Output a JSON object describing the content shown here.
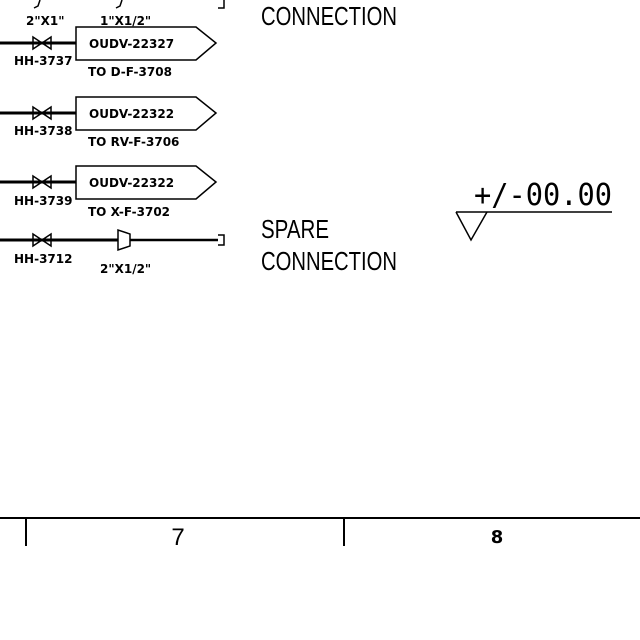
{
  "top": {
    "size_left": "2\"X1\"",
    "size_right": "1\"X1/2\"",
    "connection_label": "CONNECTION"
  },
  "lines": [
    {
      "valve_tag": "HH-3737",
      "line_no": "OUDV-22327",
      "dest": "TO D-F-3708"
    },
    {
      "valve_tag": "HH-3738",
      "line_no": "OUDV-22322",
      "dest": "TO RV-F-3706"
    },
    {
      "valve_tag": "HH-3739",
      "line_no": "OUDV-22322",
      "dest": "TO X-F-3702"
    }
  ],
  "spare": {
    "valve_tag": "HH-3712",
    "reducer_size": "2\"X1/2\"",
    "label_line1": "SPARE",
    "label_line2": "CONNECTION"
  },
  "elevation": {
    "value": "+/-00.00"
  },
  "grid": {
    "col7": "7",
    "col8": "8"
  }
}
